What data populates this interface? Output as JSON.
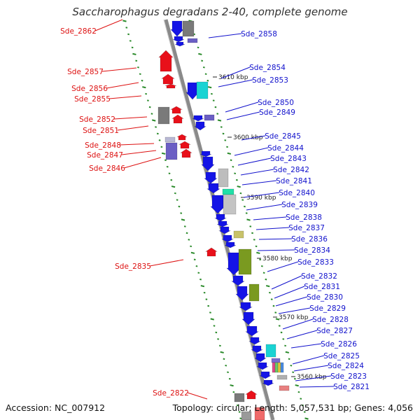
{
  "title": "Saccharophagus degradans 2-40, complete genome",
  "accession": "Accession: NC_007912",
  "summary": "Topology: circular; Length: 5,057,531 bp; Genes: 4,056",
  "colors": {
    "backbone": "#8a8a8a",
    "left_label": "#dd1111",
    "right_label": "#1111cc",
    "tick": "#2a8a2a",
    "red_gene": "#e8101a",
    "blue_gene": "#1414e6",
    "gray_gene": "#7a7a7a",
    "olive_gene": "#7a9a20",
    "cyan_gene": "#1ad3d3",
    "purple_gene": "#6b5fc4"
  },
  "kbp_labels": [
    "3610 kbp",
    "3600 kbp",
    "3590 kbp",
    "3580 kbp",
    "3570 kbp",
    "3560 kbp"
  ],
  "left_genes": [
    "Sde_2862",
    "Sde_2857",
    "Sde_2856",
    "Sde_2855",
    "Sde_2852",
    "Sde_2851",
    "Sde_2848",
    "Sde_2847",
    "Sde_2846",
    "Sde_2835",
    "Sde_2822"
  ],
  "right_genes": [
    "Sde_2858",
    "Sde_2854",
    "Sde_2853",
    "Sde_2850",
    "Sde_2849",
    "Sde_2845",
    "Sde_2844",
    "Sde_2843",
    "Sde_2842",
    "Sde_2841",
    "Sde_2840",
    "Sde_2839",
    "Sde_2838",
    "Sde_2837",
    "Sde_2836",
    "Sde_2834",
    "Sde_2833",
    "Sde_2832",
    "Sde_2831",
    "Sde_2830",
    "Sde_2829",
    "Sde_2828",
    "Sde_2827",
    "Sde_2826",
    "Sde_2825",
    "Sde_2824",
    "Sde_2823",
    "Sde_2821"
  ]
}
